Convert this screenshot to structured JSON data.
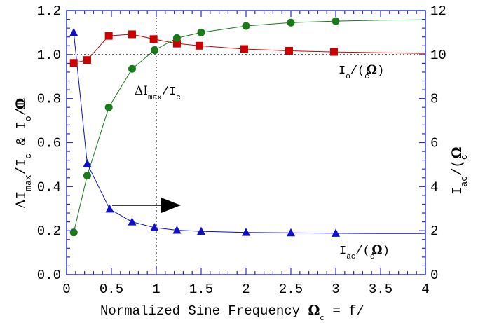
{
  "chart_data": {
    "type": "line",
    "xlabel_parts": {
      "main": "Normalized Sine Frequency ",
      "sym1": "Ω",
      "sub1": "c",
      "mid": " =   f/"
    },
    "ylabel_left_parts": {
      "a": "Δ",
      "b": "I",
      "sub1": "max",
      "c": "/I",
      "sub2": "c",
      "d": " & I",
      "sub3": "o",
      "e": "/I",
      "sub4": "c",
      "sym": "Ω"
    },
    "ylabel_right_parts": {
      "a": "I",
      "sub1": "ac",
      "b": "/(",
      "sub2": "c",
      "sym": "Ω"
    },
    "xlim": [
      0,
      4
    ],
    "ylim_left": [
      0,
      1.2
    ],
    "ylim_right": [
      0,
      12
    ],
    "x_ticks": [
      "0",
      "0.5",
      "1",
      "1.5",
      "2",
      "2.5",
      "3",
      "3.5",
      "4"
    ],
    "x_tick_values": [
      0,
      0.5,
      1,
      1.5,
      2,
      2.5,
      3,
      3.5,
      4
    ],
    "y_left_ticks": [
      "0.0",
      "0.2",
      "0.4",
      "0.6",
      "0.8",
      "1.0",
      "1.2"
    ],
    "y_left_tick_values": [
      0,
      0.2,
      0.4,
      0.6,
      0.8,
      1.0,
      1.2
    ],
    "y_right_ticks": [
      "0",
      "2",
      "4",
      "6",
      "8",
      "10",
      "12"
    ],
    "y_right_tick_values": [
      0,
      2,
      4,
      6,
      8,
      10,
      12
    ],
    "reference_lines": {
      "hline_left": 1.0,
      "vline_x": 1.0
    },
    "series": [
      {
        "key": "io",
        "axis": "left",
        "marker": "square",
        "color": "#cc0000",
        "x": [
          0.08,
          0.23,
          0.47,
          0.73,
          0.97,
          1.23,
          1.48,
          1.98,
          2.48,
          2.98
        ],
        "y": [
          0.962,
          0.975,
          1.085,
          1.092,
          1.07,
          1.05,
          1.04,
          1.025,
          1.017,
          1.012
        ],
        "line_x": [
          0.08,
          0.23,
          0.47,
          0.73,
          0.97,
          1.23,
          1.48,
          1.98,
          2.48,
          2.98,
          3.5,
          4.0
        ],
        "line_y": [
          0.962,
          0.975,
          1.085,
          1.092,
          1.07,
          1.05,
          1.04,
          1.025,
          1.017,
          1.012,
          1.008,
          1.005
        ]
      },
      {
        "key": "dimax",
        "axis": "left",
        "marker": "circle",
        "color": "#1a7a1a",
        "x": [
          0.08,
          0.23,
          0.47,
          0.73,
          0.98,
          1.23,
          1.5,
          2.0,
          2.5,
          3.0
        ],
        "y": [
          0.192,
          0.45,
          0.76,
          0.935,
          1.02,
          1.075,
          1.1,
          1.13,
          1.145,
          1.152
        ],
        "line_x": [
          0.08,
          0.23,
          0.47,
          0.73,
          0.98,
          1.23,
          1.5,
          2.0,
          2.5,
          3.0,
          3.5,
          4.0
        ],
        "line_y": [
          0.192,
          0.45,
          0.76,
          0.935,
          1.02,
          1.075,
          1.1,
          1.13,
          1.145,
          1.152,
          1.156,
          1.158
        ]
      },
      {
        "key": "iac",
        "axis": "right",
        "marker": "triangle",
        "color": "#1010cc",
        "x": [
          0.08,
          0.23,
          0.48,
          0.73,
          0.98,
          1.23,
          1.5,
          2.0,
          2.5,
          3.0
        ],
        "y": [
          11.0,
          5.05,
          2.98,
          2.4,
          2.14,
          2.02,
          1.97,
          1.92,
          1.9,
          1.88
        ],
        "line_x": [
          0.08,
          0.23,
          0.48,
          0.73,
          0.98,
          1.23,
          1.5,
          2.0,
          2.5,
          3.0,
          3.5,
          4.0
        ],
        "line_y": [
          11.0,
          5.05,
          2.98,
          2.4,
          2.14,
          2.02,
          1.97,
          1.92,
          1.9,
          1.88,
          1.87,
          1.87
        ]
      }
    ],
    "annotations": {
      "io_label": {
        "a": "I",
        "sub1": "o",
        "b": "/(",
        "sub2": "c",
        "sym": "Ω",
        "c": ")"
      },
      "dimax_label": {
        "a": "ΔI",
        "sub1": "max",
        "b": "/I",
        "sub2": "c"
      },
      "iac_label": {
        "a": "I",
        "sub1": "ac",
        "b": "/(",
        "sub2": "c",
        "sym": "Ω",
        "c": ")"
      }
    }
  }
}
